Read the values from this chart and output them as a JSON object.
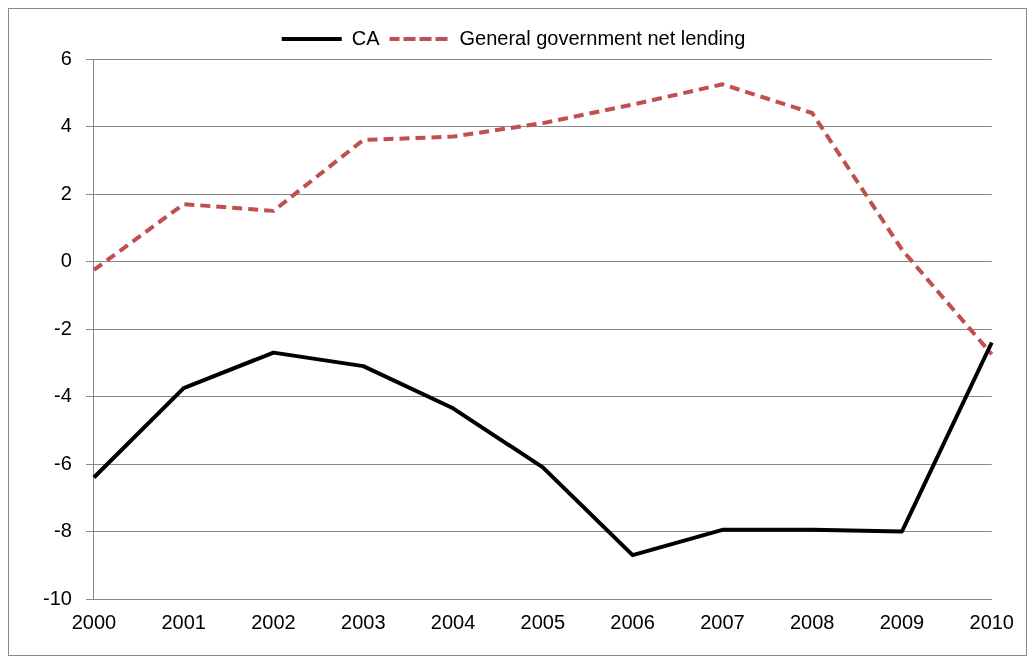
{
  "chart_data": {
    "type": "line",
    "categories": [
      "2000",
      "2001",
      "2002",
      "2003",
      "2004",
      "2005",
      "2006",
      "2007",
      "2008",
      "2009",
      "2010"
    ],
    "series": [
      {
        "name": "CA",
        "color": "#000000",
        "line_style": "solid",
        "values": [
          -6.4,
          -3.75,
          -2.7,
          -3.1,
          -4.35,
          -6.1,
          -8.7,
          -7.95,
          -7.95,
          -8.0,
          -2.4
        ]
      },
      {
        "name": "General government net lending",
        "color": "#c0504d",
        "line_style": "dashed",
        "values": [
          -0.25,
          1.7,
          1.5,
          3.6,
          3.7,
          4.1,
          4.65,
          5.25,
          4.4,
          0.35,
          -2.75
        ]
      }
    ],
    "ylim": [
      -10,
      6
    ],
    "yticks": [
      -10,
      -8,
      -6,
      -4,
      -2,
      0,
      2,
      4,
      6
    ],
    "grid": "y",
    "legend": "top",
    "marker": "none"
  }
}
